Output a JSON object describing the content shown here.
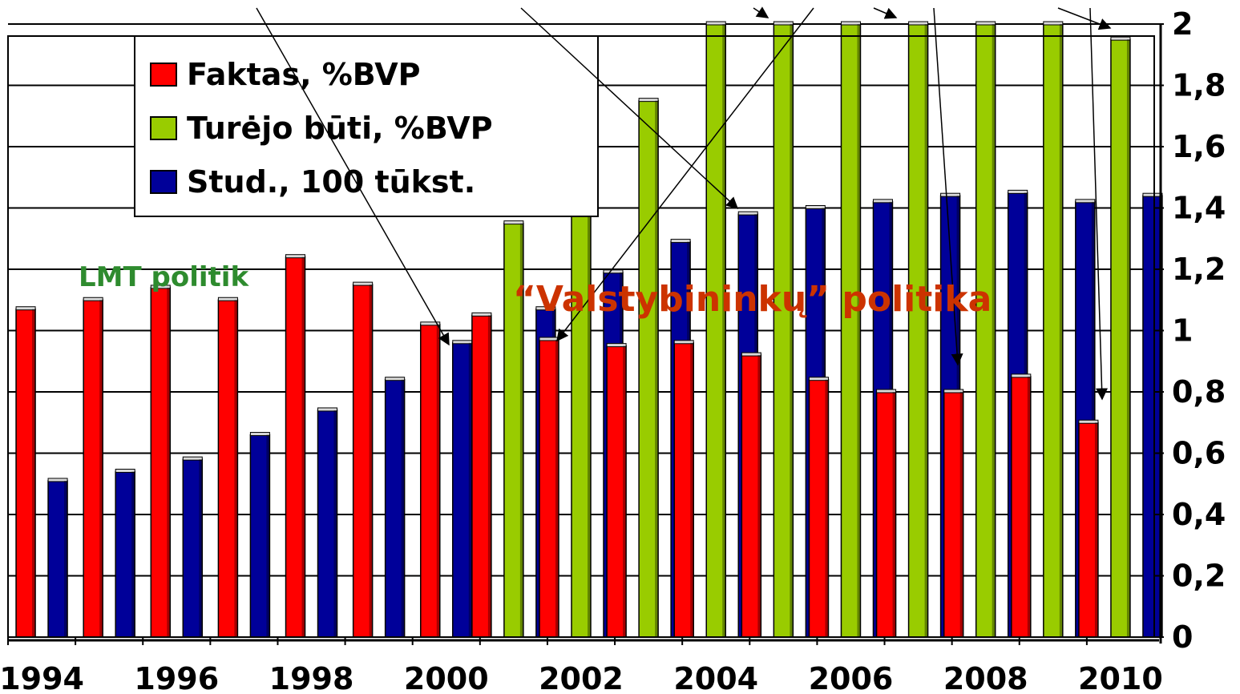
{
  "chart_data": {
    "type": "bar",
    "x": [
      1994,
      1995,
      1996,
      1997,
      1998,
      1999,
      2000,
      2001,
      2002,
      2003,
      2004,
      2005,
      2006,
      2007,
      2008,
      2009,
      2010
    ],
    "x_tick_labels": [
      "1994",
      "1996",
      "1998",
      "2000",
      "2002",
      "2004",
      "2006",
      "2008",
      "2010"
    ],
    "series": [
      {
        "name": "Faktas, %BVP",
        "color": "#ff0000",
        "values": [
          1.07,
          1.1,
          1.14,
          1.1,
          1.24,
          1.15,
          1.02,
          1.05,
          0.97,
          0.95,
          0.96,
          0.92,
          0.84,
          0.8,
          0.8,
          0.85,
          0.7
        ]
      },
      {
        "name": "Turėjo būti, %BVP",
        "color": "#99cc00",
        "values": [
          null,
          null,
          null,
          null,
          null,
          null,
          null,
          1.35,
          1.5,
          1.75,
          2.0,
          2.0,
          2.0,
          2.0,
          2.0,
          2.0,
          1.95
        ]
      },
      {
        "name": "Stud., 100 tūkst.",
        "color": "#000099",
        "values": [
          0.51,
          0.54,
          0.58,
          0.66,
          0.74,
          0.84,
          0.96,
          1.07,
          1.19,
          1.29,
          1.38,
          1.4,
          1.42,
          1.44,
          1.45,
          1.42,
          1.44
        ]
      }
    ],
    "y_ticks": [
      "0",
      "0,2",
      "0,4",
      "0,6",
      "0,8",
      "1",
      "1,2",
      "1,4",
      "1,6",
      "1,8",
      "2"
    ],
    "ylim": [
      0,
      2
    ],
    "y_axis_side": "right",
    "grid": true,
    "legend_position": "top-left",
    "annotations": [
      "LMT politik",
      "“Valstybininkų” politika"
    ]
  },
  "annotations": {
    "lmt_text": "LMT politik",
    "state_text": "“Valstybininkų” politika"
  }
}
